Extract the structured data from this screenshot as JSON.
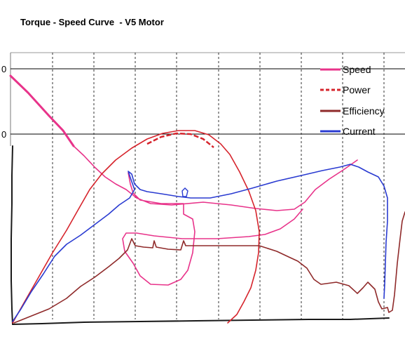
{
  "chart_data": {
    "type": "line",
    "title": "Torque - Speed Curve  - V5 Motor",
    "xlabel": "",
    "ylabel": "",
    "grid": true,
    "legend_position": "top-right",
    "y_tick_labels": [
      "0",
      "0"
    ],
    "series": [
      {
        "name": "Speed",
        "color": "#e8338a",
        "style": "solid"
      },
      {
        "name": "Power",
        "color": "#d6242c",
        "style": "dashed"
      },
      {
        "name": "Efficiency",
        "color": "#8f2a2a",
        "style": "solid"
      },
      {
        "name": "Current",
        "color": "#2a3bd1",
        "style": "solid"
      }
    ]
  }
}
